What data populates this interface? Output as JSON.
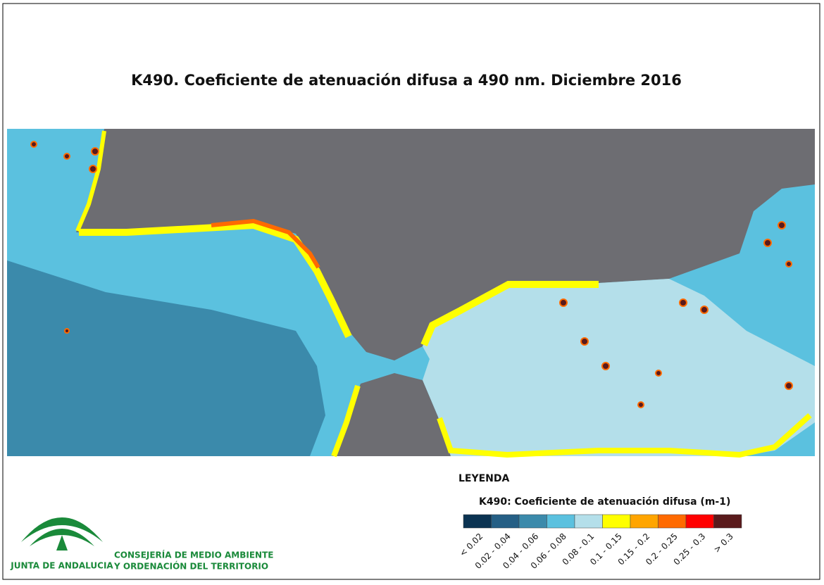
{
  "title": "K490. Coeficiente de atenuación difusa a 490 nm. Diciembre 2016",
  "legend": {
    "heading": "LEYENDA",
    "title": "K490: Coeficiente de atenuación difusa (m-1)",
    "classes": [
      {
        "label": "< 0.02",
        "color": "#0b3352"
      },
      {
        "label": "0.02 - 0.04",
        "color": "#255f85"
      },
      {
        "label": "0.04 - 0.06",
        "color": "#3b8aab"
      },
      {
        "label": "0.06 - 0.08",
        "color": "#5bc1df"
      },
      {
        "label": "0.08 - 0.1",
        "color": "#b4dfea"
      },
      {
        "label": "0.1 - 0.15",
        "color": "#ffff00"
      },
      {
        "label": "0.15 - 0.2",
        "color": "#ffa500"
      },
      {
        "label": "0.2 - 0.25",
        "color": "#ff6a00"
      },
      {
        "label": "0.25 - 0.3",
        "color": "#ff0000"
      },
      {
        "label": "> 0.3",
        "color": "#5a1a1c"
      }
    ]
  },
  "logo": {
    "name": "JUNTA DE ANDALUCIA",
    "department_line1": "CONSEJERÍA DE MEDIO AMBIENTE",
    "department_line2": "Y ORDENACIÓN DEL TERRITORIO"
  }
}
